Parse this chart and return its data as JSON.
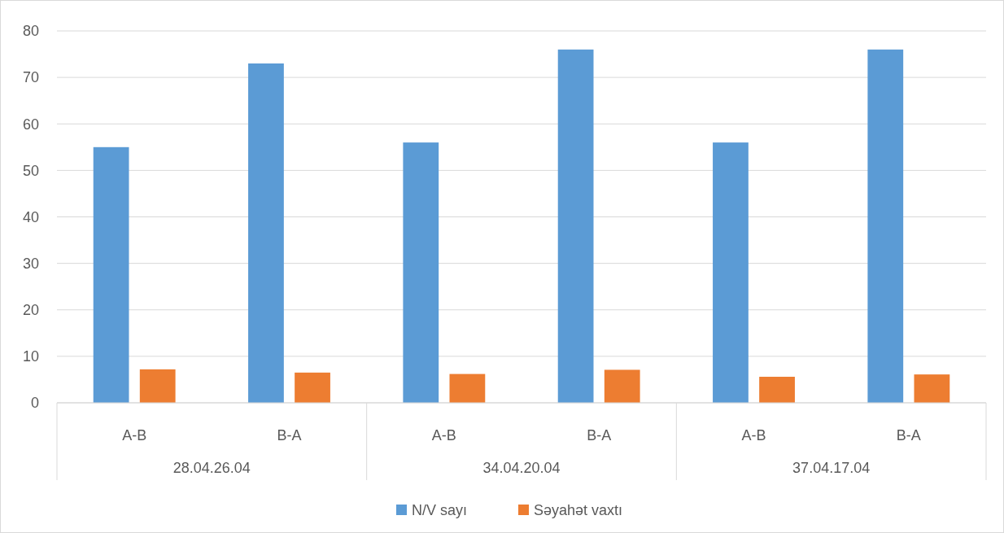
{
  "chart_data": {
    "type": "bar",
    "categories": [
      "A-B",
      "B-A",
      "A-B",
      "B-A",
      "A-B",
      "B-A"
    ],
    "annotations": [
      "28.04.26.04",
      "34.04.20.04",
      "37.04.17.04"
    ],
    "series": [
      {
        "name": "N/V sayı",
        "color": "#5b9bd5",
        "values": [
          55,
          73,
          56,
          76,
          56,
          76
        ]
      },
      {
        "name": "Səyahət vaxtı",
        "color": "#ed7d31",
        "values": [
          7.2,
          6.5,
          6.2,
          7.1,
          5.6,
          6.1
        ]
      }
    ],
    "ylim": [
      0,
      80
    ],
    "yticks": [
      0,
      10,
      20,
      30,
      40,
      50,
      60,
      70,
      80
    ],
    "grid": "y",
    "legend": "bottom"
  }
}
